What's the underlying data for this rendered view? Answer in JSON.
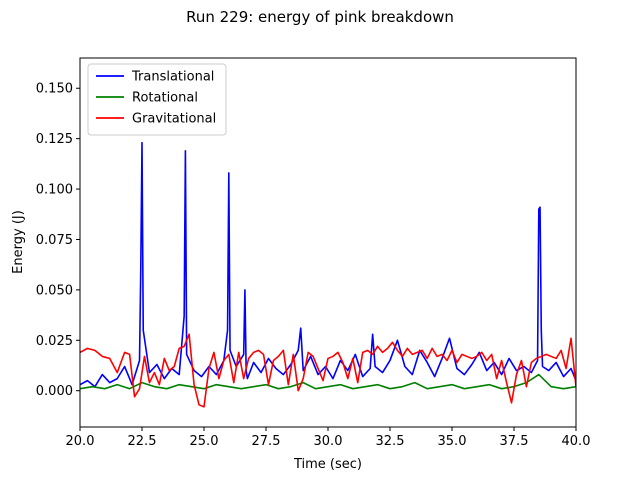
{
  "chart_data": {
    "type": "line",
    "title": "Run 229: energy of pink breakdown",
    "xlabel": "Time (sec)",
    "ylabel": "Energy (J)",
    "xlim": [
      20.0,
      40.0
    ],
    "ylim": [
      -0.018,
      0.165
    ],
    "xticks": [
      "20.0",
      "22.5",
      "25.0",
      "27.5",
      "30.0",
      "32.5",
      "35.0",
      "37.5",
      "40.0"
    ],
    "yticks": [
      "0.000",
      "0.025",
      "0.050",
      "0.075",
      "0.100",
      "0.125",
      "0.150"
    ],
    "grid": false,
    "legend_position": "upper-left",
    "series": [
      {
        "name": "Translational",
        "color": "#0000ff",
        "x": [
          20.0,
          20.3,
          20.6,
          20.9,
          21.2,
          21.5,
          21.8,
          22.1,
          22.4,
          22.45,
          22.5,
          22.55,
          22.8,
          23.1,
          23.4,
          23.7,
          24.0,
          24.2,
          24.25,
          24.3,
          24.6,
          24.9,
          25.2,
          25.5,
          25.8,
          25.95,
          26.0,
          26.05,
          26.3,
          26.6,
          26.65,
          26.7,
          26.75,
          27.0,
          27.3,
          27.6,
          27.9,
          28.2,
          28.5,
          28.8,
          28.9,
          29.0,
          29.3,
          29.6,
          29.9,
          30.2,
          30.5,
          30.8,
          31.1,
          31.4,
          31.7,
          31.8,
          31.9,
          32.2,
          32.5,
          32.8,
          33.1,
          33.4,
          33.7,
          34.0,
          34.3,
          34.6,
          34.9,
          35.2,
          35.5,
          35.8,
          36.1,
          36.4,
          36.7,
          37.0,
          37.3,
          37.6,
          37.9,
          38.2,
          38.45,
          38.5,
          38.55,
          38.6,
          38.65,
          38.9,
          39.2,
          39.5,
          39.8,
          40.0
        ],
        "y": [
          0.003,
          0.005,
          0.002,
          0.008,
          0.004,
          0.006,
          0.012,
          0.003,
          0.015,
          0.06,
          0.123,
          0.03,
          0.009,
          0.013,
          0.006,
          0.011,
          0.008,
          0.037,
          0.119,
          0.018,
          0.01,
          0.007,
          0.012,
          0.008,
          0.015,
          0.03,
          0.108,
          0.02,
          0.012,
          0.018,
          0.05,
          0.01,
          0.006,
          0.014,
          0.009,
          0.016,
          0.011,
          0.008,
          0.013,
          0.02,
          0.031,
          0.01,
          0.017,
          0.008,
          0.012,
          0.006,
          0.015,
          0.01,
          0.018,
          0.007,
          0.011,
          0.028,
          0.012,
          0.009,
          0.015,
          0.025,
          0.012,
          0.008,
          0.02,
          0.014,
          0.007,
          0.016,
          0.026,
          0.011,
          0.008,
          0.013,
          0.019,
          0.01,
          0.014,
          0.008,
          0.016,
          0.01,
          0.012,
          0.009,
          0.015,
          0.09,
          0.091,
          0.03,
          0.012,
          0.01,
          0.014,
          0.007,
          0.011,
          0.005
        ]
      },
      {
        "name": "Rotational",
        "color": "#008000",
        "x": [
          20.0,
          20.5,
          21.0,
          21.5,
          22.0,
          22.5,
          23.0,
          23.5,
          24.0,
          24.5,
          25.0,
          25.5,
          26.0,
          26.5,
          27.0,
          27.5,
          28.0,
          28.5,
          29.0,
          29.5,
          30.0,
          30.5,
          31.0,
          31.5,
          32.0,
          32.5,
          33.0,
          33.5,
          34.0,
          34.5,
          35.0,
          35.5,
          36.0,
          36.5,
          37.0,
          37.5,
          38.0,
          38.5,
          39.0,
          39.5,
          40.0
        ],
        "y": [
          0.001,
          0.002,
          0.001,
          0.003,
          0.001,
          0.004,
          0.002,
          0.001,
          0.003,
          0.002,
          0.001,
          0.003,
          0.002,
          0.001,
          0.002,
          0.003,
          0.001,
          0.002,
          0.004,
          0.001,
          0.002,
          0.003,
          0.001,
          0.002,
          0.003,
          0.001,
          0.002,
          0.004,
          0.001,
          0.002,
          0.003,
          0.001,
          0.002,
          0.003,
          0.001,
          0.002,
          0.004,
          0.008,
          0.002,
          0.001,
          0.002
        ]
      },
      {
        "name": "Gravitational",
        "color": "#ff0000",
        "x": [
          20.0,
          20.3,
          20.6,
          20.9,
          21.2,
          21.5,
          21.8,
          22.0,
          22.2,
          22.4,
          22.6,
          22.8,
          23.0,
          23.2,
          23.4,
          23.6,
          23.8,
          24.0,
          24.2,
          24.4,
          24.6,
          24.8,
          25.0,
          25.2,
          25.4,
          25.6,
          25.8,
          26.0,
          26.2,
          26.4,
          26.6,
          26.8,
          27.0,
          27.2,
          27.4,
          27.6,
          27.8,
          28.0,
          28.2,
          28.4,
          28.6,
          28.8,
          29.0,
          29.2,
          29.4,
          29.6,
          29.8,
          30.0,
          30.2,
          30.4,
          30.6,
          30.8,
          31.0,
          31.2,
          31.4,
          31.6,
          31.8,
          32.0,
          32.2,
          32.4,
          32.6,
          32.8,
          33.0,
          33.2,
          33.4,
          33.6,
          33.8,
          34.0,
          34.2,
          34.4,
          34.6,
          34.8,
          35.0,
          35.2,
          35.4,
          35.6,
          35.8,
          36.0,
          36.2,
          36.4,
          36.6,
          36.8,
          37.0,
          37.2,
          37.4,
          37.6,
          37.8,
          38.0,
          38.2,
          38.4,
          38.6,
          38.8,
          39.0,
          39.2,
          39.4,
          39.6,
          39.8,
          40.0
        ],
        "y": [
          0.019,
          0.021,
          0.02,
          0.017,
          0.016,
          0.009,
          0.019,
          0.018,
          -0.003,
          0.001,
          0.017,
          0.004,
          0.009,
          0.003,
          0.016,
          0.01,
          0.012,
          0.021,
          0.022,
          0.028,
          0.003,
          -0.007,
          -0.008,
          0.011,
          0.019,
          0.006,
          0.015,
          0.018,
          0.004,
          0.019,
          0.006,
          0.016,
          0.019,
          0.02,
          0.018,
          0.003,
          0.015,
          0.017,
          0.02,
          0.003,
          0.018,
          0.0,
          0.006,
          0.019,
          0.017,
          0.011,
          0.005,
          0.016,
          0.017,
          0.019,
          0.014,
          0.006,
          0.016,
          0.004,
          0.019,
          0.02,
          0.018,
          0.022,
          0.019,
          0.021,
          0.024,
          0.02,
          0.017,
          0.021,
          0.018,
          0.019,
          0.02,
          0.016,
          0.021,
          0.017,
          0.018,
          0.015,
          0.02,
          0.014,
          0.018,
          0.017,
          0.016,
          0.017,
          0.019,
          0.015,
          0.018,
          0.006,
          0.015,
          0.004,
          -0.006,
          0.008,
          0.015,
          0.002,
          0.014,
          0.016,
          0.017,
          0.018,
          0.017,
          0.016,
          0.02,
          0.011,
          0.026,
          0.002
        ]
      }
    ]
  }
}
